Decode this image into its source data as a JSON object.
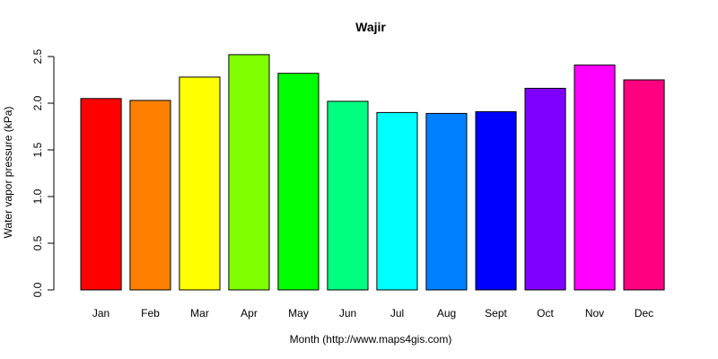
{
  "chart_data": {
    "type": "bar",
    "title": "Wajir",
    "xlabel": "Month (http://www.maps4gis.com)",
    "ylabel": "Water vapor pressure (kPa)",
    "categories": [
      "Jan",
      "Feb",
      "Mar",
      "Apr",
      "May",
      "Jun",
      "Jul",
      "Aug",
      "Sept",
      "Oct",
      "Nov",
      "Dec"
    ],
    "values": [
      2.05,
      2.03,
      2.28,
      2.52,
      2.32,
      2.02,
      1.9,
      1.89,
      1.91,
      2.16,
      2.41,
      2.25
    ],
    "colors": [
      "#ff0000",
      "#ff8000",
      "#ffff00",
      "#80ff00",
      "#00ff00",
      "#00ff80",
      "#00ffff",
      "#0080ff",
      "#0000ff",
      "#8000ff",
      "#ff00ff",
      "#ff0080"
    ],
    "yticks": [
      "0.0",
      "0.5",
      "1.0",
      "1.5",
      "2.0",
      "2.5"
    ],
    "ylim": [
      0,
      2.5
    ],
    "grid": false,
    "legend": "none"
  }
}
